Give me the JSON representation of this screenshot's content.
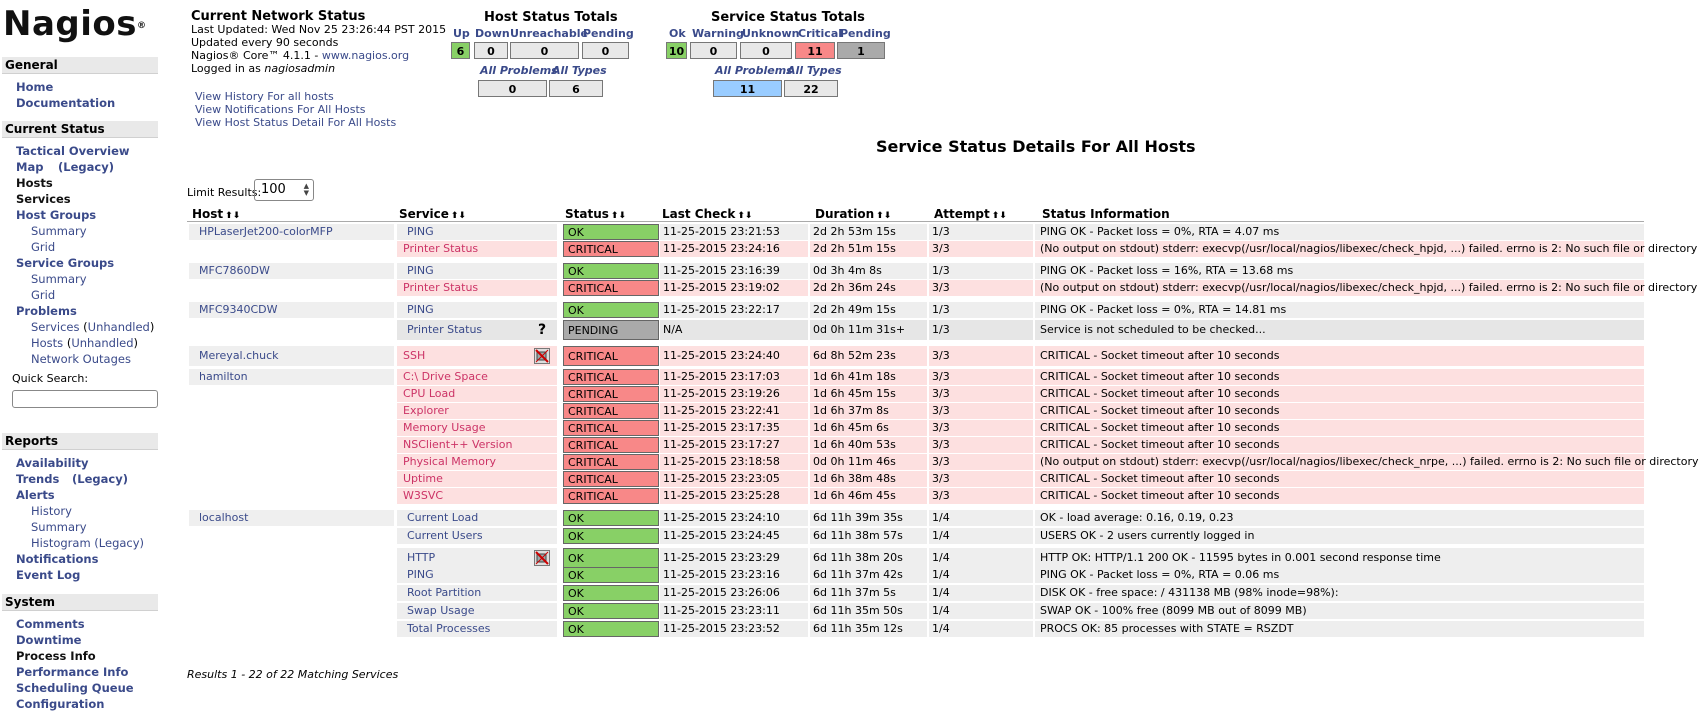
{
  "logo": {
    "text": "Nagios",
    "reg": "®"
  },
  "sidebar": {
    "general": "General",
    "home": "Home",
    "documentation": "Documentation",
    "current_status": "Current Status",
    "tactical": "Tactical Overview",
    "map": "Map",
    "map_legacy": "(Legacy)",
    "hosts": "Hosts",
    "services": "Services",
    "host_groups": "Host Groups",
    "hg_summary": "Summary",
    "hg_grid": "Grid",
    "service_groups": "Service Groups",
    "sg_summary": "Summary",
    "sg_grid": "Grid",
    "problems": "Problems",
    "p_services": "Services",
    "p_services_unh": "Unhandled",
    "p_hosts": "Hosts",
    "p_hosts_unh": "Unhandled",
    "network_outages": "Network Outages",
    "quick_search": "Quick Search:",
    "reports": "Reports",
    "availability": "Availability",
    "trends": "Trends",
    "trends_legacy": "(Legacy)",
    "alerts": "Alerts",
    "a_history": "History",
    "a_summary": "Summary",
    "a_histogram": "Histogram (Legacy)",
    "notifications": "Notifications",
    "event_log": "Event Log",
    "system": "System",
    "comments": "Comments",
    "downtime": "Downtime",
    "process_info": "Process Info",
    "performance_info": "Performance Info",
    "scheduling_queue": "Scheduling Queue",
    "configuration": "Configuration"
  },
  "status": {
    "title": "Current Network Status",
    "updated": "Last Updated: Wed Nov 25 23:26:44 PST 2015",
    "every": "Updated every 90 seconds",
    "core": "Nagios® Core™ 4.1.1 - ",
    "core_link": "www.nagios.org",
    "logged": "Logged in as ",
    "user": "nagiosadmin",
    "link1": "View History For all hosts",
    "link2": "View Notifications For All Hosts",
    "link3": "View Host Status Detail For All Hosts"
  },
  "host_totals": {
    "title": "Host Status Totals",
    "labels": [
      "Up",
      "Down",
      "Unreachable",
      "Pending"
    ],
    "values": [
      "6",
      "0",
      "0",
      "0"
    ],
    "all_problems": "All Problems",
    "all_types": "All Types",
    "problems_val": "0",
    "types_val": "6"
  },
  "service_totals": {
    "title": "Service Status Totals",
    "labels": [
      "Ok",
      "Warning",
      "Unknown",
      "Critical",
      "Pending"
    ],
    "values": [
      "10",
      "0",
      "0",
      "11",
      "1"
    ],
    "all_problems": "All Problems",
    "all_types": "All Types",
    "problems_val": "11",
    "types_val": "22"
  },
  "page_title": "Service Status Details For All Hosts",
  "limit": {
    "label": "Limit Results:",
    "value": "100"
  },
  "columns": [
    "Host",
    "Service",
    "Status",
    "Last Check",
    "Duration",
    "Attempt",
    "Status Information"
  ],
  "rows": [
    {
      "host": "HPLaserJet200-colorMFP",
      "service": "PING",
      "status": "OK",
      "last": "11-25-2015 23:21:53",
      "dur": "2d 2h 53m 15s",
      "att": "1/3",
      "info": "PING OK - Packet loss = 0%, RTA = 4.07 ms"
    },
    {
      "host": "",
      "service": "Printer Status",
      "status": "CRITICAL",
      "last": "11-25-2015 23:24:16",
      "dur": "2d 2h 51m 15s",
      "att": "3/3",
      "info": "(No output on stdout) stderr: execvp(/usr/local/nagios/libexec/check_hpjd, ...) failed. errno is 2: No such file or directory"
    },
    {
      "host": "MFC7860DW",
      "service": "PING",
      "status": "OK",
      "last": "11-25-2015 23:16:39",
      "dur": "0d 3h 4m 8s",
      "att": "1/3",
      "info": "PING OK - Packet loss = 16%, RTA = 13.68 ms"
    },
    {
      "host": "",
      "service": "Printer Status",
      "status": "CRITICAL",
      "last": "11-25-2015 23:19:02",
      "dur": "2d 2h 36m 24s",
      "att": "3/3",
      "info": "(No output on stdout) stderr: execvp(/usr/local/nagios/libexec/check_hpjd, ...) failed. errno is 2: No such file or directory"
    },
    {
      "host": "MFC9340CDW",
      "service": "PING",
      "status": "OK",
      "last": "11-25-2015 23:22:17",
      "dur": "2d 2h 49m 15s",
      "att": "1/3",
      "info": "PING OK - Packet loss = 0%, RTA = 14.81 ms"
    },
    {
      "host": "",
      "service": "Printer Status",
      "status": "PENDING",
      "last": "N/A",
      "dur": "0d 0h 11m 31s+",
      "att": "1/3",
      "info": "Service is not scheduled to be checked..."
    },
    {
      "host": "Mereyal.chuck",
      "service": "SSH",
      "status": "CRITICAL",
      "last": "11-25-2015 23:24:40",
      "dur": "6d 8h 52m 23s",
      "att": "3/3",
      "info": "CRITICAL - Socket timeout after 10 seconds"
    },
    {
      "host": "hamilton",
      "service": "C:\\ Drive Space",
      "status": "CRITICAL",
      "last": "11-25-2015 23:17:03",
      "dur": "1d 6h 41m 18s",
      "att": "3/3",
      "info": "CRITICAL - Socket timeout after 10 seconds"
    },
    {
      "host": "",
      "service": "CPU Load",
      "status": "CRITICAL",
      "last": "11-25-2015 23:19:26",
      "dur": "1d 6h 45m 15s",
      "att": "3/3",
      "info": "CRITICAL - Socket timeout after 10 seconds"
    },
    {
      "host": "",
      "service": "Explorer",
      "status": "CRITICAL",
      "last": "11-25-2015 23:22:41",
      "dur": "1d 6h 37m 8s",
      "att": "3/3",
      "info": "CRITICAL - Socket timeout after 10 seconds"
    },
    {
      "host": "",
      "service": "Memory Usage",
      "status": "CRITICAL",
      "last": "11-25-2015 23:17:35",
      "dur": "1d 6h 45m 6s",
      "att": "3/3",
      "info": "CRITICAL - Socket timeout after 10 seconds"
    },
    {
      "host": "",
      "service": "NSClient++ Version",
      "status": "CRITICAL",
      "last": "11-25-2015 23:17:27",
      "dur": "1d 6h 40m 53s",
      "att": "3/3",
      "info": "CRITICAL - Socket timeout after 10 seconds"
    },
    {
      "host": "",
      "service": "Physical Memory",
      "status": "CRITICAL",
      "last": "11-25-2015 23:18:58",
      "dur": "0d 0h 11m 46s",
      "att": "3/3",
      "info": "(No output on stdout) stderr: execvp(/usr/local/nagios/libexec/check_nrpe, ...) failed. errno is 2: No such file or directory"
    },
    {
      "host": "",
      "service": "Uptime",
      "status": "CRITICAL",
      "last": "11-25-2015 23:23:05",
      "dur": "1d 6h 38m 48s",
      "att": "3/3",
      "info": "CRITICAL - Socket timeout after 10 seconds"
    },
    {
      "host": "",
      "service": "W3SVC",
      "status": "CRITICAL",
      "last": "11-25-2015 23:25:28",
      "dur": "1d 6h 46m 45s",
      "att": "3/3",
      "info": "CRITICAL - Socket timeout after 10 seconds"
    },
    {
      "host": "localhost",
      "service": "Current Load",
      "status": "OK",
      "last": "11-25-2015 23:24:10",
      "dur": "6d 11h 39m 35s",
      "att": "1/4",
      "info": "OK - load average: 0.16, 0.19, 0.23"
    },
    {
      "host": "",
      "service": "Current Users",
      "status": "OK",
      "last": "11-25-2015 23:24:45",
      "dur": "6d 11h 38m 57s",
      "att": "1/4",
      "info": "USERS OK - 2 users currently logged in"
    },
    {
      "host": "",
      "service": "HTTP",
      "status": "OK",
      "last": "11-25-2015 23:23:29",
      "dur": "6d 11h 38m 20s",
      "att": "1/4",
      "info": "HTTP OK: HTTP/1.1 200 OK - 11595 bytes in 0.001 second response time"
    },
    {
      "host": "",
      "service": "PING",
      "status": "OK",
      "last": "11-25-2015 23:23:16",
      "dur": "6d 11h 37m 42s",
      "att": "1/4",
      "info": "PING OK - Packet loss = 0%, RTA = 0.06 ms"
    },
    {
      "host": "",
      "service": "Root Partition",
      "status": "OK",
      "last": "11-25-2015 23:26:06",
      "dur": "6d 11h 37m 5s",
      "att": "1/4",
      "info": "DISK OK - free space: / 431138 MB (98% inode=98%):"
    },
    {
      "host": "",
      "service": "Swap Usage",
      "status": "OK",
      "last": "11-25-2015 23:23:11",
      "dur": "6d 11h 35m 50s",
      "att": "1/4",
      "info": "SWAP OK - 100% free (8099 MB out of 8099 MB)"
    },
    {
      "host": "",
      "service": "Total Processes",
      "status": "OK",
      "last": "11-25-2015 23:23:52",
      "dur": "6d 11h 35m 12s",
      "att": "1/4",
      "info": "PROCS OK: 85 processes with STATE = RSZDT"
    }
  ],
  "footer": "Results 1 - 22 of 22 Matching Services"
}
